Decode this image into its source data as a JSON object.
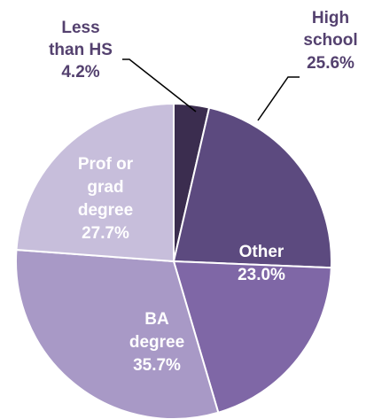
{
  "chart_data": {
    "type": "pie",
    "title": "",
    "slices": [
      {
        "label_lines": [
          "Less",
          "than HS"
        ],
        "value_label": "4.2%",
        "value": 4.2,
        "color": "#3b2d4f"
      },
      {
        "label_lines": [
          "High",
          "school"
        ],
        "value_label": "25.6%",
        "value": 25.6,
        "color": "#5c4a7f"
      },
      {
        "label_lines": [
          "Other"
        ],
        "value_label": "23.0%",
        "value": 23.0,
        "color": "#7f67a6"
      },
      {
        "label_lines": [
          "BA",
          "degree"
        ],
        "value_label": "35.7%",
        "value": 35.7,
        "color": "#a899c6"
      },
      {
        "label_lines": [
          "Prof or",
          "grad",
          "degree"
        ],
        "value_label": "27.7%",
        "value": 27.7,
        "color": "#c7bedb"
      }
    ],
    "label_color_outside": "#54416f",
    "label_color_inside": "#ffffff"
  }
}
